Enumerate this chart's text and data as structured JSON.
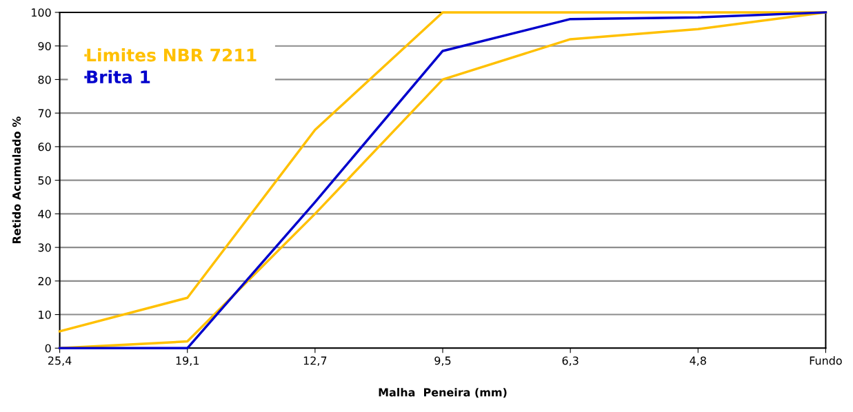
{
  "chart_data": {
    "type": "line",
    "xlabel": "Malha  Peneira (mm)",
    "ylabel": "Retido Acumulado %",
    "categories": [
      "25,4",
      "19,1",
      "12,7",
      "9,5",
      "6,3",
      "4,8",
      "Fundo"
    ],
    "series": [
      {
        "name": "Limites NBR 7211",
        "color": "#ffc000",
        "values": [
          5,
          15,
          65,
          100,
          100,
          100,
          100
        ]
      },
      {
        "color": "#ffc000",
        "values": [
          0,
          2,
          40,
          80,
          92,
          95,
          100
        ]
      },
      {
        "name": "Brita 1",
        "color": "#0000cc",
        "values": [
          0,
          0,
          43.5,
          88.5,
          98,
          98.5,
          100
        ]
      }
    ],
    "ylim": [
      0,
      100
    ],
    "yticks": [
      0,
      10,
      20,
      30,
      40,
      50,
      60,
      70,
      80,
      90,
      100
    ],
    "grid": "y",
    "legend": "top left",
    "marker": "none",
    "line_style": "solid"
  }
}
